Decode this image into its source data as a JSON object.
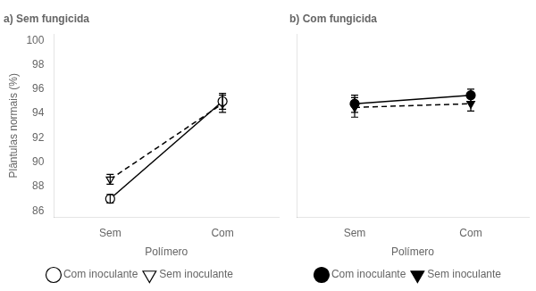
{
  "chart_data": [
    {
      "type": "line",
      "title": "a) Sem fungicida",
      "categories": [
        "Sem",
        "Com"
      ],
      "x_label": "Polímero",
      "y_label": "Plântulas normais (%)",
      "ylim": [
        85.5,
        100.5
      ],
      "yticks": [
        86,
        88,
        90,
        92,
        94,
        96,
        98,
        100
      ],
      "grid": false,
      "legend": "bottom",
      "series": [
        {
          "name": "Com inoculante",
          "color": "#000000",
          "marker": "circle_open",
          "line_style": "solid",
          "values": [
            87.0,
            95.0
          ],
          "yerr": [
            0.35,
            0.65
          ]
        },
        {
          "name": "Sem inoculante",
          "color": "#000000",
          "marker": "triangle_down_open",
          "line_style": "dashed",
          "values": [
            88.6,
            94.8
          ],
          "yerr": [
            0.4,
            0.7
          ]
        }
      ]
    },
    {
      "type": "line",
      "title": "b) Com fungicida",
      "categories": [
        "Sem",
        "Com"
      ],
      "x_label": "Polímero",
      "ylim": [
        85.5,
        100.5
      ],
      "yticks": [
        86,
        88,
        90,
        92,
        94,
        96,
        98,
        100
      ],
      "grid": false,
      "legend": "bottom",
      "tick_labels": "x",
      "series": [
        {
          "name": "Com inoculante",
          "color": "#000000",
          "marker": "circle",
          "line_style": "solid",
          "values": [
            94.8,
            95.5
          ],
          "yerr": [
            0.7,
            0.5
          ]
        },
        {
          "name": "Sem inoculante",
          "color": "#000000",
          "marker": "triangle_down",
          "line_style": "dashed",
          "values": [
            94.5,
            94.8
          ],
          "yerr": [
            0.8,
            0.6
          ]
        }
      ]
    }
  ]
}
